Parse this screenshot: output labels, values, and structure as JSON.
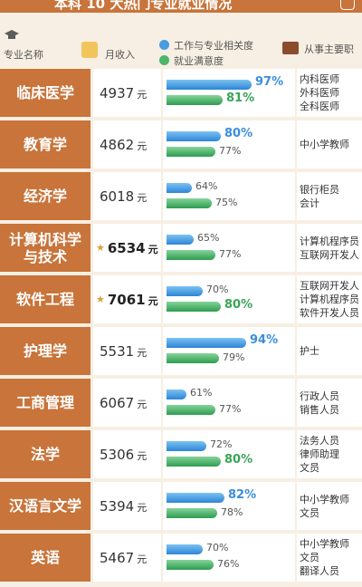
{
  "title": "本科 10 大热门专业就业情况",
  "headers": {
    "major": "专业名称",
    "income": "月收入",
    "relevance": "工作与专业相关度",
    "satisfaction": "就业满意度",
    "jobs": "从事主要职"
  },
  "colors": {
    "header_bar": "#c8743a",
    "relevance": "#2c85d6",
    "satisfaction": "#2e9d50"
  },
  "rows": [
    {
      "major": "临床医学",
      "income": "4937",
      "unit": "元",
      "highlight": false,
      "relevance": 97,
      "satisfaction": 81,
      "relevance_text": "97%",
      "satisfaction_text": "81%",
      "jobs": [
        "内科医师",
        "外科医师",
        "全科医师"
      ]
    },
    {
      "major": "教育学",
      "income": "4862",
      "unit": "元",
      "highlight": false,
      "relevance": 80,
      "satisfaction": 77,
      "relevance_text": "80%",
      "satisfaction_text": "77%",
      "jobs": [
        "中小学教师"
      ]
    },
    {
      "major": "经济学",
      "income": "6018",
      "unit": "元",
      "highlight": false,
      "relevance": 64,
      "satisfaction": 75,
      "relevance_text": "64%",
      "satisfaction_text": "75%",
      "jobs": [
        "银行柜员",
        "会计"
      ]
    },
    {
      "major": "计算机科学\n与技术",
      "income": "6534",
      "unit": "元",
      "highlight": true,
      "relevance": 65,
      "satisfaction": 77,
      "relevance_text": "65%",
      "satisfaction_text": "77%",
      "jobs": [
        "计算机程序员",
        "互联网开发人"
      ]
    },
    {
      "major": "软件工程",
      "income": "7061",
      "unit": "元",
      "highlight": true,
      "relevance": 70,
      "satisfaction": 80,
      "relevance_text": "70%",
      "satisfaction_text": "80%",
      "jobs": [
        "互联网开发人",
        "计算机程序员",
        "软件开发人员"
      ]
    },
    {
      "major": "护理学",
      "income": "5531",
      "unit": "元",
      "highlight": false,
      "relevance": 94,
      "satisfaction": 79,
      "relevance_text": "94%",
      "satisfaction_text": "79%",
      "jobs": [
        "护士"
      ]
    },
    {
      "major": "工商管理",
      "income": "6067",
      "unit": "元",
      "highlight": false,
      "relevance": 61,
      "satisfaction": 77,
      "relevance_text": "61%",
      "satisfaction_text": "77%",
      "jobs": [
        "行政人员",
        "销售人员"
      ]
    },
    {
      "major": "法学",
      "income": "5306",
      "unit": "元",
      "highlight": false,
      "relevance": 72,
      "satisfaction": 80,
      "relevance_text": "72%",
      "satisfaction_text": "80%",
      "jobs": [
        "法务人员",
        "律师助理",
        "文员"
      ]
    },
    {
      "major": "汉语言文学",
      "income": "5394",
      "unit": "元",
      "highlight": false,
      "relevance": 82,
      "satisfaction": 78,
      "relevance_text": "82%",
      "satisfaction_text": "78%",
      "jobs": [
        "中小学教师",
        "文员"
      ]
    },
    {
      "major": "英语",
      "income": "5467",
      "unit": "元",
      "highlight": false,
      "relevance": 70,
      "satisfaction": 76,
      "relevance_text": "70%",
      "satisfaction_text": "76%",
      "jobs": [
        "中小学教师",
        "文员",
        "翻译人员"
      ]
    }
  ]
}
